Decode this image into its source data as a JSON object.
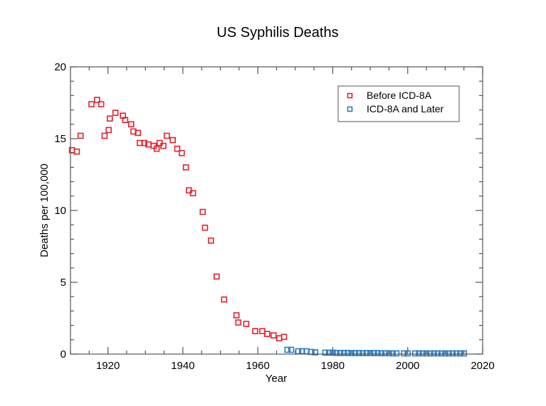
{
  "chart_data": {
    "type": "scatter",
    "title": "US Syphilis Deaths",
    "xlabel": "Year",
    "ylabel": "Deaths per 100,000",
    "xlim": [
      1910,
      2020
    ],
    "ylim": [
      0,
      20
    ],
    "x_ticks": [
      1920,
      1940,
      1960,
      1980,
      2000,
      2020
    ],
    "x_tick_labels": [
      "1920",
      "1940",
      "1960",
      "1980",
      "2000",
      "2020"
    ],
    "y_ticks": [
      0,
      5,
      10,
      15,
      20
    ],
    "y_tick_labels": [
      "0",
      "5",
      "10",
      "15",
      "20"
    ],
    "x_minor_step": 5,
    "y_minor_step": 1,
    "grid": false,
    "legend_position": "top-right",
    "series": [
      {
        "name": "Before ICD-8A",
        "color": "#e3222b",
        "marker": "square-open",
        "x": [
          1910.4,
          1911.7,
          1912.7,
          1915.6,
          1917.1,
          1918.2,
          1919.1,
          1920.2,
          1920.5,
          1922.0,
          1924.0,
          1924.6,
          1926.2,
          1926.8,
          1928.0,
          1928.5,
          1929.7,
          1930.8,
          1932.2,
          1933.0,
          1933.8,
          1934.8,
          1935.7,
          1937.3,
          1938.5,
          1939.7,
          1940.8,
          1941.6,
          1942.7,
          1945.3,
          1945.9,
          1947.5,
          1949.0,
          1951.0,
          1954.3,
          1954.8,
          1956.9,
          1959.3,
          1961.2,
          1962.5,
          1964.2,
          1965.7,
          1967.0
        ],
        "y": [
          14.2,
          14.1,
          15.2,
          17.4,
          17.7,
          17.4,
          15.2,
          15.6,
          16.4,
          16.8,
          16.6,
          16.3,
          16.0,
          15.5,
          15.4,
          14.7,
          14.7,
          14.6,
          14.5,
          14.3,
          14.7,
          14.5,
          15.2,
          14.9,
          14.3,
          14.0,
          13.0,
          11.4,
          11.2,
          9.9,
          8.8,
          7.9,
          5.4,
          3.8,
          2.7,
          2.2,
          2.1,
          1.6,
          1.6,
          1.4,
          1.3,
          1.1,
          1.2
        ]
      },
      {
        "name": "ICD-8A and Later",
        "color": "#2b7bc1",
        "marker": "square-open",
        "x": [
          1967.9,
          1968.9,
          1970.8,
          1971.8,
          1973.0,
          1974.2,
          1975.3,
          1978.0,
          1979.0,
          1980.0,
          1981.0,
          1982.0,
          1983.0,
          1984.0,
          1985.0,
          1986.0,
          1987.0,
          1988.0,
          1989.0,
          1990.0,
          1991.0,
          1992.0,
          1993.0,
          1994.0,
          1995.0,
          1996.0,
          1997.0,
          1999.0,
          2000.0,
          2002.0,
          2003.0,
          2004.0,
          2005.0,
          2006.0,
          2007.0,
          2008.0,
          2009.0,
          2010.0,
          2011.0,
          2012.0,
          2013.0,
          2014.0,
          2015.0
        ],
        "y": [
          0.3,
          0.3,
          0.2,
          0.2,
          0.2,
          0.15,
          0.12,
          0.1,
          0.1,
          0.1,
          0.08,
          0.08,
          0.08,
          0.08,
          0.07,
          0.07,
          0.07,
          0.07,
          0.07,
          0.07,
          0.07,
          0.07,
          0.06,
          0.06,
          0.06,
          0.05,
          0.05,
          0.05,
          0.05,
          0.05,
          0.05,
          0.05,
          0.05,
          0.05,
          0.05,
          0.05,
          0.05,
          0.05,
          0.05,
          0.05,
          0.05,
          0.05,
          0.05
        ]
      }
    ]
  }
}
